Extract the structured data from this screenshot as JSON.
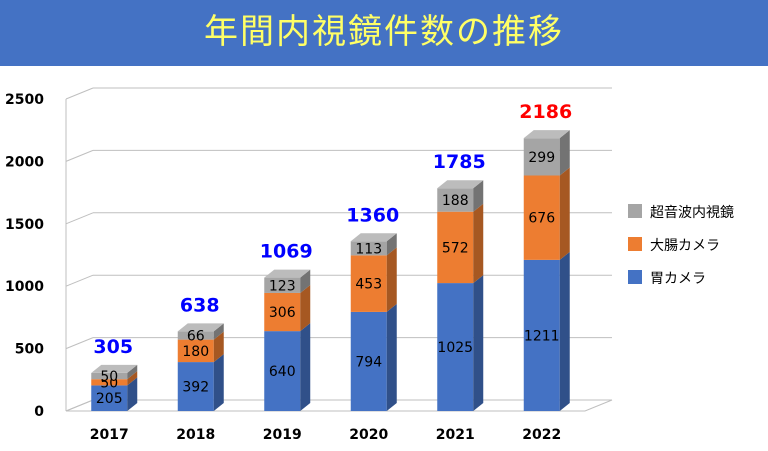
{
  "title": "年間内視鏡件数の推移",
  "colors": {
    "title_bg": "#4472c4",
    "title_text": "#ffff66"
  },
  "chart_data": {
    "type": "bar",
    "stacked": true,
    "categories": [
      "2017",
      "2018",
      "2019",
      "2020",
      "2021",
      "2022"
    ],
    "series": [
      {
        "name": "胃カメラ",
        "values": [
          205,
          392,
          640,
          794,
          1025,
          1211
        ],
        "color": "#4472c4"
      },
      {
        "name": "大腸カメラ",
        "values": [
          50,
          180,
          306,
          453,
          572,
          676
        ],
        "color": "#ed7d31"
      },
      {
        "name": "超音波内視鏡",
        "values": [
          50,
          66,
          123,
          113,
          188,
          299
        ],
        "color": "#a5a5a5"
      }
    ],
    "totals": [
      "305",
      "638",
      "1069",
      "1360",
      "1785",
      "2186"
    ],
    "total_colors": [
      "#0000ff",
      "#0000ff",
      "#0000ff",
      "#0000ff",
      "#0000ff",
      "#ff0000"
    ],
    "ylim": [
      0,
      2500
    ],
    "yticks": [
      "0",
      "500",
      "1000",
      "1500",
      "2000",
      "2500"
    ],
    "grid": true,
    "legend_position": "right",
    "style": "3d"
  }
}
